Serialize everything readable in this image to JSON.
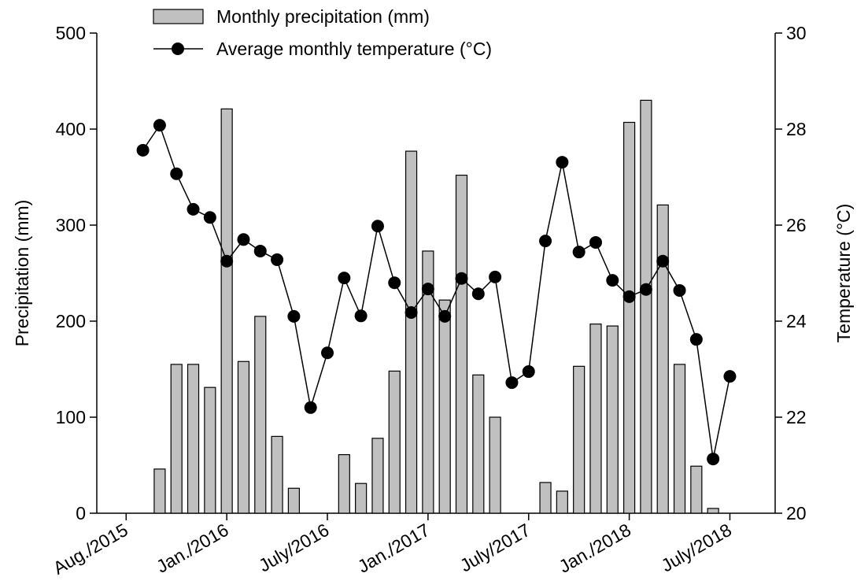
{
  "chart_data": {
    "type": "combo",
    "y_label": "Precipitation (mm)",
    "y2_label": "Temperature (°C)",
    "x": [
      1,
      2,
      3,
      4,
      5,
      6,
      7,
      8,
      9,
      10,
      11,
      12,
      13,
      14,
      15,
      16,
      17,
      18,
      19,
      20,
      21,
      22,
      23,
      24,
      25,
      26,
      27,
      28,
      29,
      30,
      31,
      32,
      33,
      34,
      35,
      36
    ],
    "xlim": [
      -1.75,
      38.7
    ],
    "xticks": [
      {
        "value": 0,
        "label": "Aug./2015"
      },
      {
        "value": 6,
        "label": "Jan./2016"
      },
      {
        "value": 12,
        "label": "July/2016"
      },
      {
        "value": 18,
        "label": "Jan./2017"
      },
      {
        "value": 24,
        "label": "July/2017"
      },
      {
        "value": 30,
        "label": "Jan./2018"
      },
      {
        "value": 36,
        "label": "July/2018"
      }
    ],
    "ylim": [
      0,
      500
    ],
    "yticks": [
      0,
      100,
      200,
      300,
      400,
      500
    ],
    "y2lim": [
      20,
      30
    ],
    "y2ticks": [
      20,
      22,
      24,
      26,
      28,
      30
    ],
    "legend": "top",
    "series": [
      {
        "name": "Monthly precipitation (mm)",
        "type": "bar",
        "axis": "y",
        "color": "#c0c0c0",
        "values": [
          0,
          46,
          155,
          155,
          131,
          421,
          158,
          205,
          80,
          26,
          0,
          0,
          61,
          31,
          78,
          148,
          377,
          273,
          222,
          352,
          144,
          100,
          0,
          0,
          32,
          23,
          153,
          197,
          195,
          407,
          430,
          321,
          155,
          49,
          5,
          0
        ]
      },
      {
        "name": "Average monthly temperature (°C)",
        "type": "line",
        "axis": "y2",
        "color": "#000000",
        "values": [
          27.56,
          28.08,
          27.07,
          26.33,
          26.16,
          25.25,
          25.7,
          25.46,
          25.28,
          24.1,
          22.2,
          23.34,
          24.9,
          24.11,
          25.98,
          24.8,
          24.18,
          24.67,
          24.1,
          24.89,
          24.57,
          24.92,
          22.72,
          22.95,
          25.67,
          27.31,
          25.44,
          25.64,
          24.85,
          24.51,
          24.66,
          25.25,
          24.64,
          23.62,
          21.13,
          22.85
        ]
      }
    ]
  }
}
